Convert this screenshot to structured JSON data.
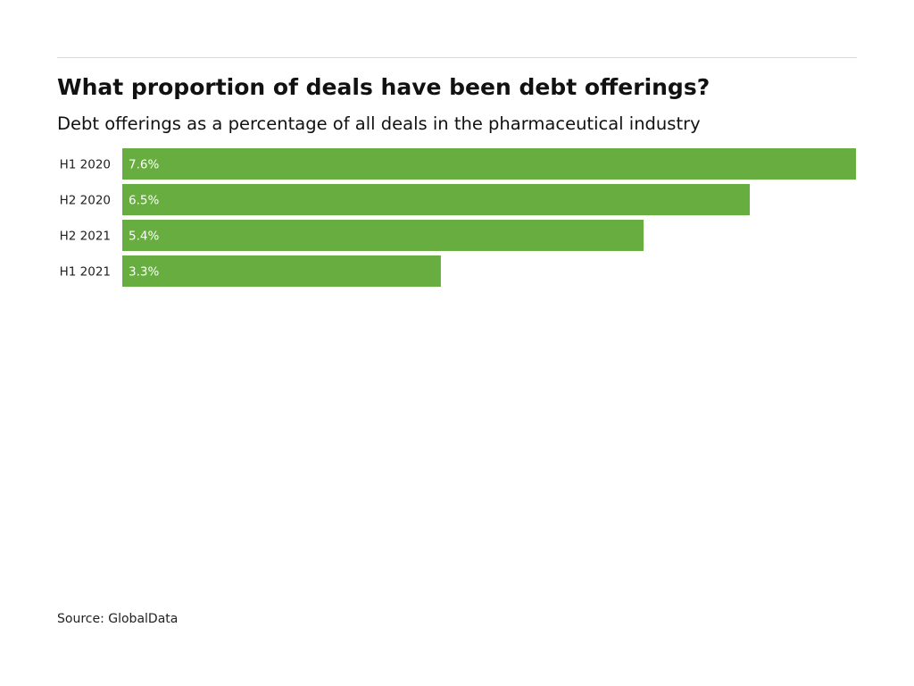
{
  "chart_data": {
    "type": "bar",
    "orientation": "horizontal",
    "title": "What proportion of deals have been debt offerings?",
    "subtitle": "Debt offerings as a percentage of all deals in the pharmaceutical industry",
    "categories": [
      "H1 2020",
      "H2 2020",
      "H2 2021",
      "H1 2021"
    ],
    "values": [
      7.6,
      6.5,
      5.4,
      3.3
    ],
    "data_labels": [
      "7.6%",
      "6.5%",
      "5.4%",
      "3.3%"
    ],
    "bar_color": "#67ad3f",
    "label_color": "#ffffff",
    "xlim": [
      0,
      7.6
    ],
    "grid": false,
    "legend": "none",
    "source": "Source: GlobalData"
  }
}
